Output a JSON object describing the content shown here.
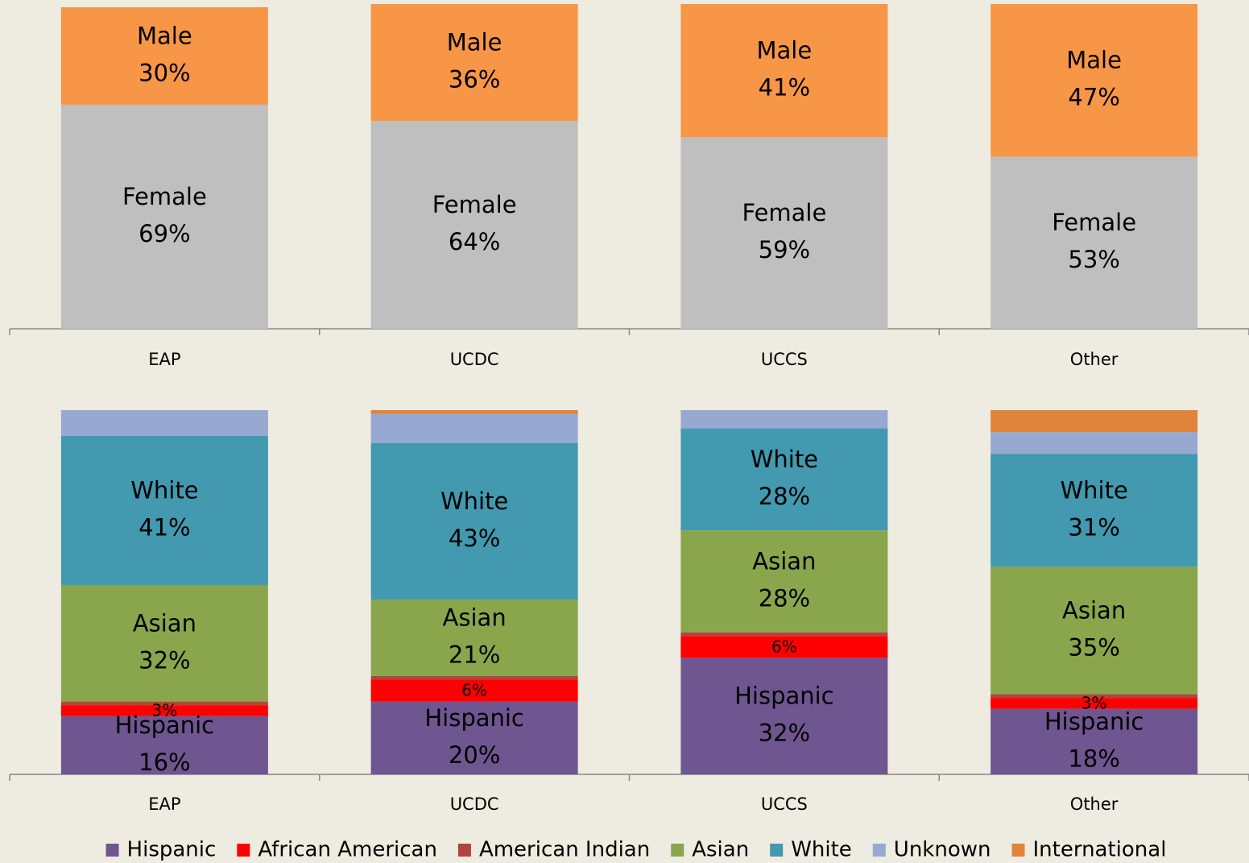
{
  "chart_data": [
    {
      "type": "bar",
      "stacked": true,
      "categories": [
        "EAP",
        "UCDC",
        "UCCS",
        "Other"
      ],
      "ylim": [
        0,
        100
      ],
      "series": [
        {
          "name": "Female",
          "color": "#bfbfbf",
          "values": [
            69,
            64,
            59,
            53
          ],
          "value_labels": [
            "69%",
            "64%",
            "59%",
            "53%"
          ]
        },
        {
          "name": "Male",
          "color": "#f79646",
          "values": [
            30,
            36,
            41,
            47
          ],
          "value_labels": [
            "30%",
            "36%",
            "41%",
            "47%"
          ]
        }
      ]
    },
    {
      "type": "bar",
      "stacked": true,
      "categories": [
        "EAP",
        "UCDC",
        "UCCS",
        "Other"
      ],
      "ylim": [
        0,
        100
      ],
      "legend": "bottom",
      "series": [
        {
          "name": "Hispanic",
          "color": "#6f5690",
          "values": [
            16,
            20,
            32,
            18
          ],
          "value_labels": [
            "16%",
            "20%",
            "32%",
            "18%"
          ]
        },
        {
          "name": "African American",
          "color": "#ff0000",
          "values": [
            3,
            6,
            6,
            3
          ],
          "value_labels": [
            "3%",
            "6%",
            "6%",
            "3%"
          ],
          "label_shows_name": false
        },
        {
          "name": "American Indian",
          "color": "#b2443e",
          "values": [
            1,
            1,
            1,
            1
          ]
        },
        {
          "name": "Asian",
          "color": "#8aa64c",
          "values": [
            32,
            21,
            28,
            35
          ],
          "value_labels": [
            "32%",
            "21%",
            "28%",
            "35%"
          ]
        },
        {
          "name": "White",
          "color": "#4299b0",
          "values": [
            41,
            43,
            28,
            31
          ],
          "value_labels": [
            "41%",
            "43%",
            "28%",
            "31%"
          ]
        },
        {
          "name": "Unknown",
          "color": "#97a9d1",
          "values": [
            7,
            8,
            5,
            6
          ]
        },
        {
          "name": "International",
          "color": "#e0833b",
          "values": [
            0,
            1,
            0,
            6
          ]
        }
      ]
    }
  ]
}
